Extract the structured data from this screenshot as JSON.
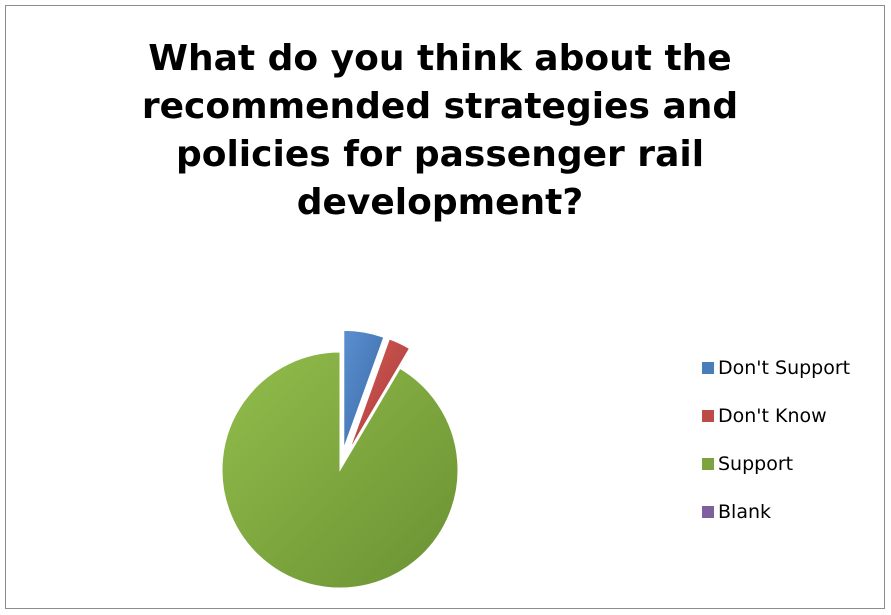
{
  "chart_data": {
    "type": "pie",
    "title": "What do you think about the recommended strategies and policies for passenger rail development?",
    "categories": [
      "Don't Support",
      "Don't Know",
      "Support",
      "Blank"
    ],
    "values": [
      5.5,
      3.0,
      91.5,
      0.0
    ],
    "unit": "percent (estimated)",
    "colors": [
      "#4a7ebb",
      "#be4b48",
      "#7ea33d",
      "#7d60a0"
    ],
    "exploded": [
      true,
      true,
      false,
      false
    ],
    "legend_position": "right"
  }
}
